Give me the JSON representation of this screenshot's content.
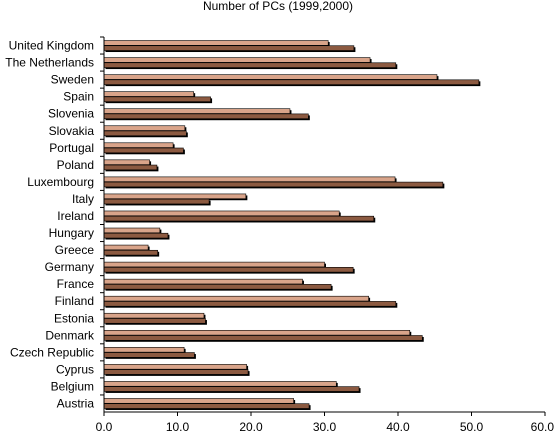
{
  "chart_data": {
    "type": "bar",
    "orientation": "horizontal",
    "title": "Number of PCs (1999,2000)",
    "xlabel": "",
    "ylabel": "",
    "xlim": [
      0,
      60
    ],
    "xticks": [
      "0.0",
      "10.0",
      "20.0",
      "30.0",
      "40.0",
      "50.0",
      "60.0"
    ],
    "grid": false,
    "legend": "none",
    "categories": [
      "United Kingdom",
      "The Netherlands",
      "Sweden",
      "Spain",
      "Slovenia",
      "Slovakia",
      "Portugal",
      "Poland",
      "Luxembourg",
      "Italy",
      "Ireland",
      "Hungary",
      "Greece",
      "Germany",
      "France",
      "Finland",
      "Estonia",
      "Denmark",
      "Czech Republic",
      "Cyprus",
      "Belgium",
      "Austria"
    ],
    "series": [
      {
        "color": "#d9a48a",
        "values": [
          30.5,
          36.2,
          45.3,
          12.2,
          25.3,
          11.0,
          9.4,
          6.2,
          39.6,
          19.3,
          32.0,
          7.6,
          6.0,
          30.0,
          27.0,
          36.0,
          13.6,
          41.6,
          10.9,
          19.4,
          31.6,
          25.8
        ]
      },
      {
        "color": "#8c5a41",
        "values": [
          34.0,
          39.7,
          51.0,
          14.5,
          27.8,
          11.2,
          10.8,
          7.2,
          46.1,
          14.3,
          36.7,
          8.7,
          7.3,
          33.9,
          30.9,
          39.7,
          13.8,
          43.3,
          12.3,
          19.6,
          34.7,
          27.9
        ]
      }
    ]
  }
}
